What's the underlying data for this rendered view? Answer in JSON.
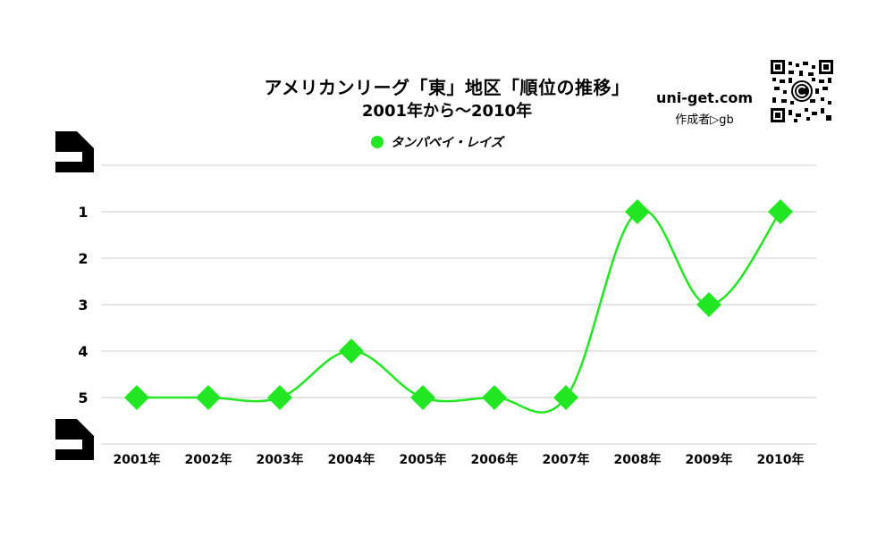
{
  "title": "アメリカンリーグ「東」地区「順位の推移」",
  "subtitle": "2001年から～2010年",
  "brand": {
    "site": "uni-get.com",
    "author": "作成者▷gb"
  },
  "colors": {
    "series": "#22e622",
    "grid": "#cccccc",
    "text": "#000000"
  },
  "icons": {
    "qr": "qr-code-icon",
    "logo": "copyright-logo-icon"
  },
  "chart_data": {
    "type": "line",
    "categories": [
      "2001年",
      "2002年",
      "2003年",
      "2004年",
      "2005年",
      "2006年",
      "2007年",
      "2008年",
      "2009年",
      "2010年"
    ],
    "series": [
      {
        "name": "タンパベイ・レイズ",
        "values": [
          5,
          5,
          5,
          4,
          5,
          5,
          5,
          1,
          3,
          1
        ],
        "color": "#22e622",
        "marker": "diamond"
      }
    ],
    "y_ticks": [
      "1",
      "2",
      "3",
      "4",
      "5"
    ],
    "ylim": [
      0,
      6
    ],
    "y_inverted": true,
    "grid": true,
    "legend_position": "top-center",
    "smooth": true
  }
}
